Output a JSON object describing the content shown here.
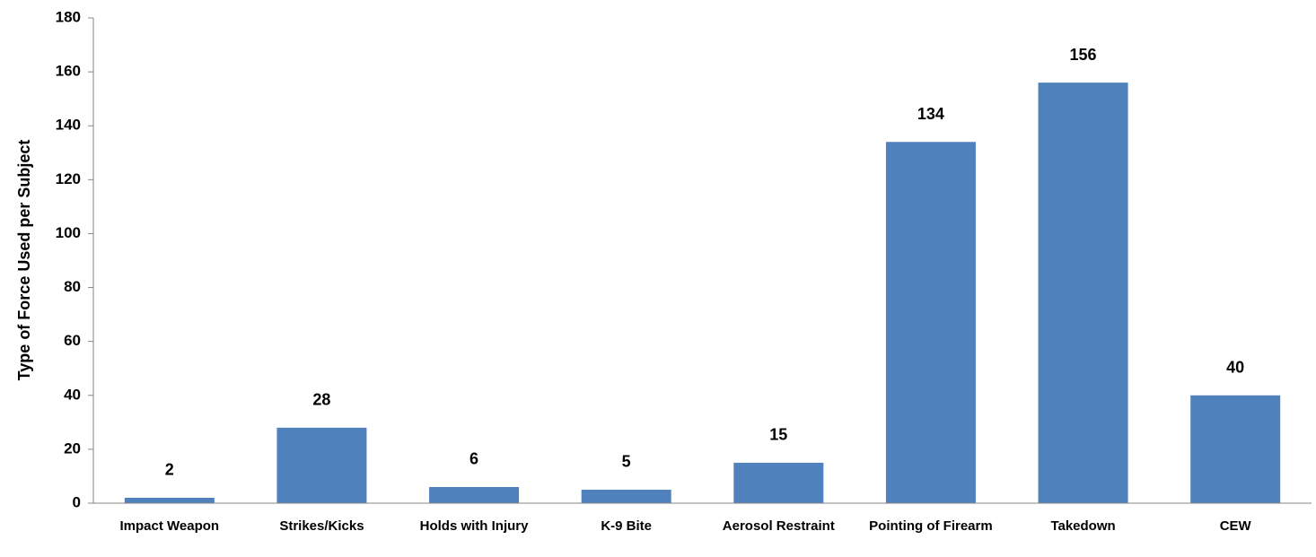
{
  "chart_data": {
    "type": "bar",
    "y_label": "Type of Force Used per Subject",
    "categories": [
      "Impact Weapon",
      "Strikes/Kicks",
      "Holds with Injury",
      "K-9 Bite",
      "Aerosol Restraint",
      "Pointing of Firearm",
      "Takedown",
      "CEW"
    ],
    "values": [
      2,
      28,
      6,
      5,
      15,
      134,
      156,
      40
    ],
    "color": "#4f81bd",
    "ylim": [
      0,
      180
    ],
    "yticks": [
      0,
      20,
      40,
      60,
      80,
      100,
      120,
      140,
      160,
      180
    ],
    "grid": false
  }
}
